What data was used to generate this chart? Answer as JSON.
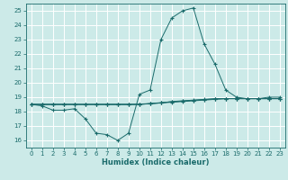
{
  "title": "",
  "xlabel": "Humidex (Indice chaleur)",
  "xlim": [
    -0.5,
    23.5
  ],
  "ylim": [
    15.5,
    25.5
  ],
  "yticks": [
    16,
    17,
    18,
    19,
    20,
    21,
    22,
    23,
    24,
    25
  ],
  "xticks": [
    0,
    1,
    2,
    3,
    4,
    5,
    6,
    7,
    8,
    9,
    10,
    11,
    12,
    13,
    14,
    15,
    16,
    17,
    18,
    19,
    20,
    21,
    22,
    23
  ],
  "bg_color": "#cceae8",
  "grid_color": "#ffffff",
  "line_color": "#1a6b6b",
  "series": {
    "main": [
      18.5,
      18.4,
      18.1,
      18.1,
      18.2,
      17.5,
      16.5,
      16.4,
      16.0,
      16.5,
      19.2,
      19.5,
      23.0,
      24.5,
      25.0,
      25.2,
      22.7,
      21.3,
      19.5,
      19.0,
      18.9,
      18.9,
      19.0,
      19.0
    ],
    "line2": [
      18.5,
      18.5,
      18.5,
      18.5,
      18.5,
      18.5,
      18.5,
      18.5,
      18.5,
      18.5,
      18.5,
      18.55,
      18.6,
      18.65,
      18.7,
      18.75,
      18.8,
      18.85,
      18.9,
      18.9,
      18.9,
      18.9,
      18.9,
      18.9
    ],
    "line3": [
      18.5,
      18.5,
      18.5,
      18.5,
      18.5,
      18.5,
      18.5,
      18.5,
      18.5,
      18.5,
      18.5,
      18.55,
      18.6,
      18.7,
      18.75,
      18.8,
      18.85,
      18.9,
      18.9,
      18.9,
      18.9,
      18.9,
      18.9,
      18.9
    ],
    "line4": [
      18.5,
      18.5,
      18.5,
      18.5,
      18.5,
      18.5,
      18.5,
      18.5,
      18.5,
      18.5,
      18.52,
      18.56,
      18.62,
      18.68,
      18.73,
      18.78,
      18.83,
      18.88,
      18.9,
      18.9,
      18.9,
      18.9,
      18.9,
      18.9
    ]
  },
  "label_fontsize": 5.0,
  "xlabel_fontsize": 6.0
}
